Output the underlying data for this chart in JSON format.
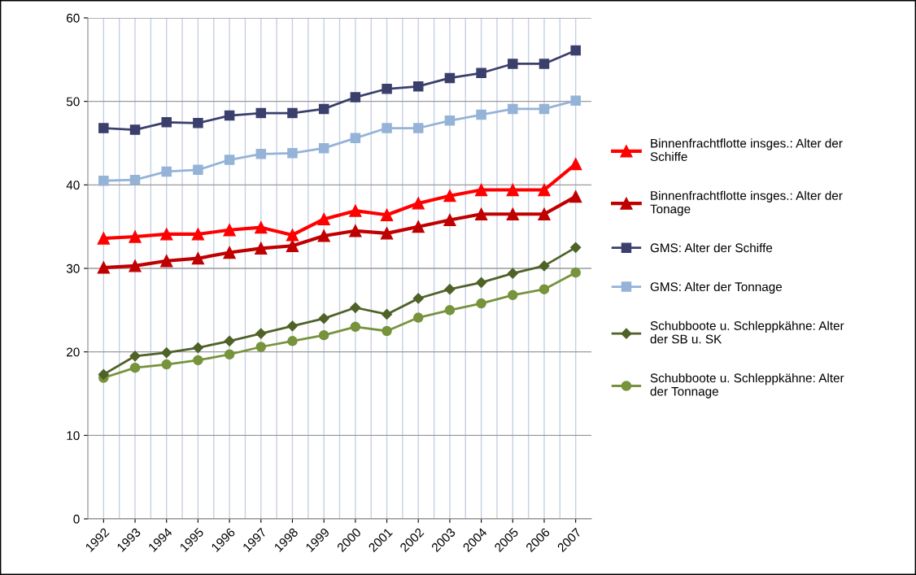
{
  "chart_data": {
    "type": "line",
    "categories": [
      "1992",
      "1993",
      "1994",
      "1995",
      "1996",
      "1997",
      "1998",
      "1999",
      "2000",
      "2001",
      "2002",
      "2003",
      "2004",
      "2005",
      "2006",
      "2007"
    ],
    "series": [
      {
        "name": "Binnenfrachtflotte insges.: Alter der\nSchiffe",
        "color": "#ff0000",
        "marker": "triangle",
        "values": [
          33.6,
          33.8,
          34.1,
          34.1,
          34.6,
          34.9,
          34.0,
          35.9,
          36.9,
          36.4,
          37.8,
          38.7,
          39.4,
          39.4,
          39.4,
          42.5
        ]
      },
      {
        "name": "Binnenfrachtflotte insges.: Alter der\nTonage",
        "color": "#c00000",
        "marker": "triangle",
        "values": [
          30.1,
          30.3,
          30.9,
          31.2,
          31.9,
          32.4,
          32.7,
          33.9,
          34.5,
          34.2,
          35.0,
          35.8,
          36.5,
          36.5,
          36.5,
          38.6
        ]
      },
      {
        "name": "GMS: Alter der Schiffe",
        "color": "#3b3f6b",
        "marker": "square",
        "values": [
          46.8,
          46.6,
          47.5,
          47.4,
          48.3,
          48.6,
          48.6,
          49.1,
          50.5,
          51.5,
          51.8,
          52.8,
          53.4,
          54.5,
          54.5,
          56.1
        ]
      },
      {
        "name": "GMS: Alter der Tonnage",
        "color": "#95b3d7",
        "marker": "square",
        "values": [
          40.5,
          40.6,
          41.6,
          41.8,
          43.0,
          43.7,
          43.8,
          44.4,
          45.6,
          46.8,
          46.8,
          47.7,
          48.4,
          49.1,
          49.1,
          50.1
        ]
      },
      {
        "name": "Schubboote u. Schleppkähne: Alter\nder SB u. SK",
        "color": "#4f6228",
        "marker": "diamond",
        "values": [
          17.3,
          19.5,
          19.9,
          20.5,
          21.3,
          22.2,
          23.1,
          24.0,
          25.3,
          24.5,
          26.4,
          27.5,
          28.3,
          29.4,
          30.3,
          32.5
        ]
      },
      {
        "name": "Schubboote u. Schleppkähne: Alter\nder Tonnage",
        "color": "#77933c",
        "marker": "circle",
        "values": [
          16.9,
          18.1,
          18.5,
          19.0,
          19.7,
          20.6,
          21.3,
          22.0,
          23.0,
          22.5,
          24.1,
          25.0,
          25.8,
          26.8,
          27.5,
          29.5
        ]
      }
    ],
    "ylim": [
      0,
      60
    ],
    "yticks": [
      0,
      10,
      20,
      30,
      40,
      50,
      60
    ],
    "grid": true,
    "legend": "right"
  }
}
